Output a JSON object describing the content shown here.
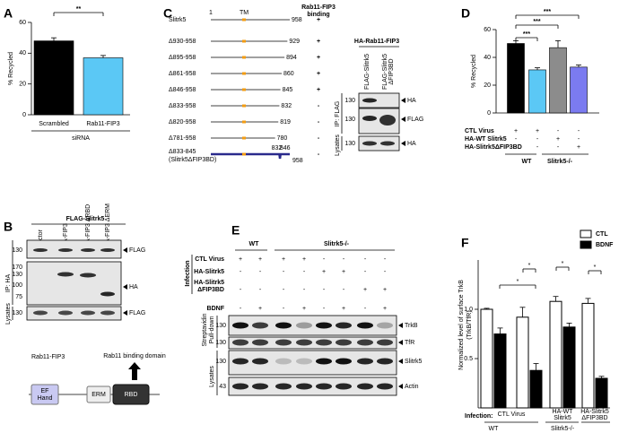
{
  "panel_labels": [
    "A",
    "B",
    "C",
    "D",
    "E",
    "F"
  ],
  "chart_data": [
    {
      "type": "bar",
      "y_label": "% Recycled",
      "x_label": "siRNA",
      "categories": [
        "Scrambled",
        "Rab11-FIP3"
      ],
      "values": [
        48,
        37
      ],
      "errors": [
        2,
        1.5
      ],
      "colors": [
        "#000000",
        "#5bc8f5"
      ],
      "ylim": [
        0,
        60
      ],
      "yticks": [
        0,
        20,
        40,
        60
      ],
      "annotations": [
        "**"
      ]
    },
    {
      "type": "bar",
      "y_label": "% Recycled",
      "categories": [
        null,
        null,
        null,
        null
      ],
      "values": [
        50,
        31,
        47,
        33
      ],
      "errors": [
        2,
        1.5,
        5,
        1.5
      ],
      "colors": [
        "#000000",
        "#5bc8f5",
        "#8c8c8c",
        "#7b7bf0"
      ],
      "ylim": [
        0,
        60
      ],
      "yticks": [
        0,
        20,
        40,
        60
      ],
      "annotations": [
        "***",
        "***",
        "***"
      ],
      "conditions": [
        {
          "name": "CTL Virus",
          "signs": [
            "+",
            "+",
            "-",
            "-"
          ]
        },
        {
          "name": "HA-WT Slitrk5",
          "signs": [
            "-",
            "-",
            "+",
            "-"
          ]
        },
        {
          "name": "HA-Slitrk5ΔFIP3BD",
          "signs": [
            "-",
            "-",
            "-",
            "+"
          ]
        }
      ],
      "genotypes": [
        "WT",
        "Slitrk5-/-"
      ]
    },
    {
      "type": "grouped_bar",
      "y_label": [
        "Normalized level of surface TrkB",
        "(TrkB/TfR)"
      ],
      "categories": [
        null,
        null,
        null,
        null
      ],
      "series": [
        {
          "name": "CTL",
          "color": "#ffffff",
          "values": [
            1.0,
            0.92,
            1.08,
            1.06
          ],
          "errors": [
            0.01,
            0.1,
            0.05,
            0.05
          ]
        },
        {
          "name": "BDNF",
          "color": "#000000",
          "values": [
            0.75,
            0.38,
            0.82,
            0.3
          ],
          "errors": [
            0.06,
            0.07,
            0.04,
            0.02
          ]
        }
      ],
      "ylim": [
        0,
        1.5
      ],
      "yticks": [
        0.5,
        {
          "value": 1,
          "label": "1.0"
        }
      ],
      "legend": "upper right",
      "annotations": [
        "*",
        "*",
        "*",
        "*"
      ],
      "infection_title": "Infection:",
      "infection_labels": [
        [
          "CTL Virus"
        ],
        [
          "HA-WT",
          "Slitrk5"
        ],
        [
          "HA-Slitrk5",
          "ΔFIP3BD"
        ]
      ],
      "genotypes": [
        "WT",
        "Slitrk5-/-"
      ]
    }
  ],
  "panel_b": {
    "title": "FLAG-Slitrk5",
    "lanes": [
      "Vector",
      "HA-FIP3",
      "HA-FIP3 ΔRBD",
      "HA-FIP3 ΔERM"
    ],
    "sections": [
      "IP: HA",
      "Lysates"
    ],
    "blots": [
      {
        "markers": [
          130
        ],
        "label": "FLAG"
      },
      {
        "markers": [
          170,
          130,
          100,
          75
        ],
        "label": "HA"
      },
      {
        "markers": [
          130
        ],
        "label": "FLAG"
      }
    ],
    "domain": {
      "protein": "Rab11-FIP3",
      "callout": "Rab11 binding domain",
      "domains": [
        [
          "EF",
          "Hand"
        ],
        [
          "ERM"
        ],
        [
          "RBD"
        ]
      ]
    }
  },
  "panel_c": {
    "header": [
      "Rab11-FIP3",
      "binding"
    ],
    "start": 1,
    "tm_label": "TM",
    "constructs": [
      {
        "label": "Slitrk5",
        "end": 958,
        "binding": "+"
      },
      {
        "label": "Δ930-958",
        "end": 929,
        "binding": "+"
      },
      {
        "label": "Δ895-958",
        "end": 894,
        "binding": "+"
      },
      {
        "label": "Δ861-958",
        "end": 860,
        "binding": "+"
      },
      {
        "label": "Δ846-958",
        "end": 845,
        "binding": "+"
      },
      {
        "label": "Δ833-958",
        "end": 832,
        "binding": "-"
      },
      {
        "label": "Δ820-958",
        "end": 819,
        "binding": "-"
      },
      {
        "label": "Δ781-958",
        "end": 780,
        "binding": "-"
      },
      {
        "label": "Δ833-845",
        "sublabel": "(Slitrk5ΔFIP3BD)",
        "gap": [
          832,
          846
        ],
        "end": 958,
        "binding": "-"
      }
    ],
    "blot": {
      "title": "HA-Rab11-FIP3",
      "lanes": [
        [
          "FLAG-Slitrk5"
        ],
        [
          "FLAG-Slitrk5",
          "ΔFIP3BD"
        ]
      ],
      "sections": [
        "IP: FLAG",
        "Lysates"
      ],
      "blots": [
        {
          "markers": [
            130
          ],
          "label": "HA"
        },
        {
          "markers": [
            130
          ],
          "label": "FLAG"
        },
        {
          "markers": [
            130
          ],
          "label": "HA"
        }
      ]
    }
  },
  "panel_e": {
    "genotypes": [
      "WT",
      "Slitrk5-/-"
    ],
    "section_title": "Infection",
    "rows": [
      {
        "name": [
          "CTL Virus"
        ],
        "signs": [
          "+",
          "+",
          "+",
          "+",
          "-",
          "-",
          "-",
          "-"
        ]
      },
      {
        "name": [
          "HA-Slitrk5"
        ],
        "signs": [
          "-",
          "-",
          "-",
          "-",
          "+",
          "+",
          "-",
          "-"
        ]
      },
      {
        "name": [
          "HA-Slitrk5",
          "ΔFIP3BD"
        ],
        "signs": [
          "-",
          "-",
          "-",
          "-",
          "-",
          "-",
          "+",
          "+"
        ]
      },
      {
        "name": [
          "BDNF"
        ],
        "signs": [
          "-",
          "+",
          "-",
          "+",
          "-",
          "+",
          "-",
          "+"
        ]
      }
    ],
    "sections": [
      [
        "Streptavidin",
        "Pull-down"
      ],
      [
        "Lysates"
      ]
    ],
    "blots": [
      {
        "marker": 130,
        "label": "TrkB"
      },
      {
        "marker": 130,
        "label": "TfR"
      },
      {
        "marker": 130,
        "label": "Slitrk5"
      },
      {
        "marker": 43,
        "label": "Actin"
      }
    ]
  }
}
